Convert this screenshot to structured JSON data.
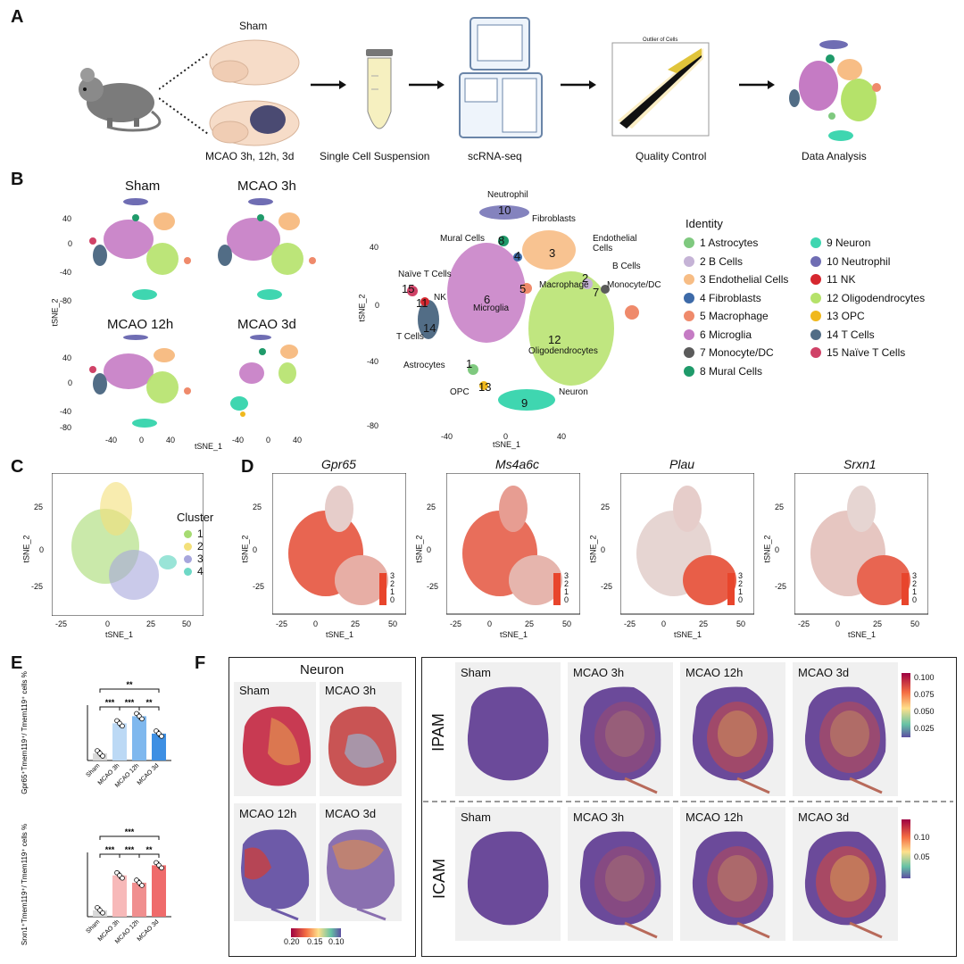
{
  "panels": {
    "a": "A",
    "b": "B",
    "c": "C",
    "d": "D",
    "e": "E",
    "f": "F"
  },
  "panelA": {
    "sham_label": "Sham",
    "mcao_label": "MCAO 3h, 12h, 3d",
    "step1": "Single Cell Suspension",
    "step2": "scRNA-seq",
    "step3": "Quality Control",
    "step4": "Data Analysis",
    "qc_title": "Outlier of Cells"
  },
  "panelB": {
    "small_titles": [
      "Sham",
      "MCAO 3h",
      "MCAO 12h",
      "MCAO 3d"
    ],
    "small_y_ticks": [
      "40",
      "0",
      "-40",
      "-80"
    ],
    "small_x_ticks": [
      "-40",
      "0",
      "40"
    ],
    "small_xlabel": "tSNE_1",
    "small_ylabel": "tSNE_2",
    "big_xlabel": "tSNE_1",
    "big_ylabel": "tSNE_2",
    "big_y_ticks": [
      "40",
      "0",
      "-40",
      "-80"
    ],
    "big_x_ticks": [
      "-40",
      "0",
      "40"
    ],
    "cluster_labels": [
      {
        "name": "Neutrophil",
        "num": "10"
      },
      {
        "name": "Fibroblasts",
        "num": "4"
      },
      {
        "name": "Mural Cells",
        "num": "8"
      },
      {
        "name": "Endothelial Cells",
        "num": "3"
      },
      {
        "name": "B Cells",
        "num": "2"
      },
      {
        "name": "Monocyte/DC",
        "num": "7"
      },
      {
        "name": "Macrophage",
        "num": "5"
      },
      {
        "name": "Naïve T Cells",
        "num": "15"
      },
      {
        "name": "NK",
        "num": "11"
      },
      {
        "name": "T Cells",
        "num": "14"
      },
      {
        "name": "Microglia",
        "num": "6"
      },
      {
        "name": "Oligodendrocytes",
        "num": "12"
      },
      {
        "name": "Astrocytes",
        "num": "1"
      },
      {
        "name": "OPC",
        "num": "13"
      },
      {
        "name": "Neuron",
        "num": "9"
      }
    ],
    "legend_title": "Identity",
    "legend": [
      {
        "label": "1 Astrocytes",
        "color": "#7fc97f"
      },
      {
        "label": "2 B Cells",
        "color": "#c5b3d6"
      },
      {
        "label": "3 Endothelial Cells",
        "color": "#f7bd85"
      },
      {
        "label": "4 Fibroblasts",
        "color": "#3d6aa8"
      },
      {
        "label": "5 Macrophage",
        "color": "#ef8a6b"
      },
      {
        "label": "6 Microglia",
        "color": "#c57bc4"
      },
      {
        "label": "7 Monocyte/DC",
        "color": "#5b5b5b"
      },
      {
        "label": "8 Mural Cells",
        "color": "#1f9a6a"
      },
      {
        "label": "9 Neuron",
        "color": "#3fd6b0"
      },
      {
        "label": "10 Neutrophil",
        "color": "#6f6db3"
      },
      {
        "label": "11 NK",
        "color": "#d6272f"
      },
      {
        "label": "12 Oligodendrocytes",
        "color": "#b5e26a"
      },
      {
        "label": "13 OPC",
        "color": "#f0b81c"
      },
      {
        "label": "14 T Cells",
        "color": "#526d86"
      },
      {
        "label": "15 Naïve T Cells",
        "color": "#d04267"
      }
    ]
  },
  "panelC": {
    "legend_title": "Cluster",
    "items": [
      {
        "label": "1",
        "color": "#a6db72"
      },
      {
        "label": "2",
        "color": "#f3e07a"
      },
      {
        "label": "3",
        "color": "#a7a6dc"
      },
      {
        "label": "4",
        "color": "#6ed8c6"
      }
    ],
    "y_ticks": [
      "25",
      "0",
      "-25"
    ],
    "x_ticks": [
      "-25",
      "0",
      "25",
      "50"
    ],
    "xlabel": "tSNE_1",
    "ylabel": "tSNE_2"
  },
  "panelD": {
    "genes": [
      "Gpr65",
      "Ms4a6c",
      "Plau",
      "Srxn1"
    ],
    "y_ticks": [
      "25",
      "0",
      "-25"
    ],
    "x_ticks": [
      "-25",
      "0",
      "25",
      "50"
    ],
    "xlabel": "tSNE_1",
    "ylabel": "tSNE_2",
    "scale": [
      "3",
      "2",
      "1",
      "0"
    ]
  },
  "panelE": {
    "chart_data": [
      {
        "type": "bar",
        "ylabel": "Gpr65⁺Tmem119⁺/ Tmem119⁺ cells %",
        "categories": [
          "Sham",
          "MCAO 3h",
          "MCAO 12h",
          "MCAO 3d"
        ],
        "values": [
          9,
          47,
          56,
          34
        ],
        "ylim": [
          0,
          70
        ],
        "colors": [
          "#d9d9d9",
          "#bcd9f5",
          "#7fb8ee",
          "#3d8fe3"
        ],
        "significance": [
          "**",
          "***",
          "***",
          "**"
        ]
      },
      {
        "type": "bar",
        "ylabel": "Srxn1⁺Tmem119⁺/ Tmem119⁺ cells %",
        "categories": [
          "Sham",
          "MCAO 3h",
          "MCAO 12h",
          "MCAO 3d"
        ],
        "values": [
          7,
          45,
          37,
          56
        ],
        "ylim": [
          0,
          70
        ],
        "colors": [
          "#d9d9d9",
          "#f7b9b9",
          "#f08f8f",
          "#ef6b6b"
        ],
        "significance": [
          "***",
          "***",
          "***",
          "**"
        ]
      }
    ]
  },
  "panelF": {
    "neuron_title": "Neuron",
    "neuron_labels": [
      "Sham",
      "MCAO 3h",
      "MCAO 12h",
      "MCAO 3d"
    ],
    "neuron_scale": [
      "0.20",
      "0.15",
      "0.10"
    ],
    "row_labels": [
      "IPAM",
      "ICAM"
    ],
    "col_labels": [
      "Sham",
      "MCAO 3h",
      "MCAO 12h",
      "MCAO 3d"
    ],
    "ipam_scale": [
      "0.100",
      "0.075",
      "0.050",
      "0.025"
    ],
    "icam_scale": [
      "0.10",
      "0.05"
    ]
  }
}
